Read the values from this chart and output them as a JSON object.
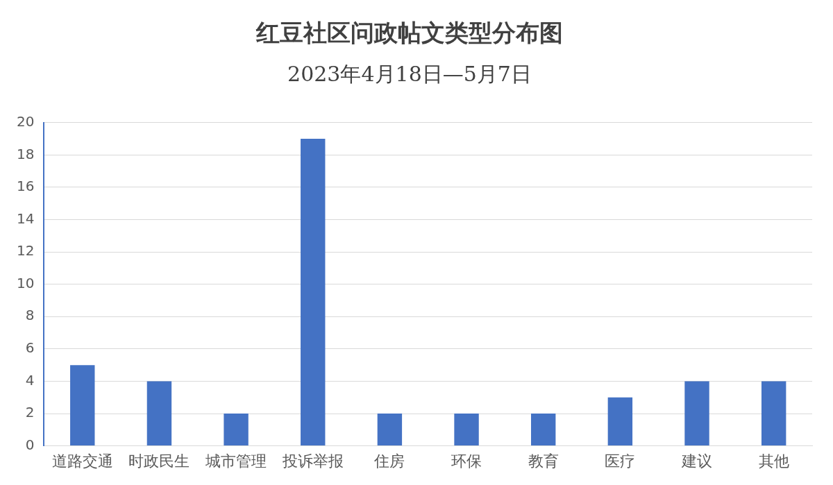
{
  "chart_data": {
    "type": "bar",
    "title": "红豆社区问政帖文类型分布图",
    "subtitle": "2023年4月18日—5月7日",
    "categories": [
      "道路交通",
      "时政民生",
      "城市管理",
      "投诉举报",
      "住房",
      "环保",
      "教育",
      "医疗",
      "建议",
      "其他"
    ],
    "values": [
      5,
      4,
      2,
      19,
      2,
      2,
      2,
      3,
      4,
      4
    ],
    "color": "#4472c4",
    "ylim": [
      0,
      20
    ],
    "yticks": [
      0,
      2,
      4,
      6,
      8,
      10,
      12,
      14,
      16,
      18,
      20
    ],
    "grid": "y",
    "legend": false
  }
}
